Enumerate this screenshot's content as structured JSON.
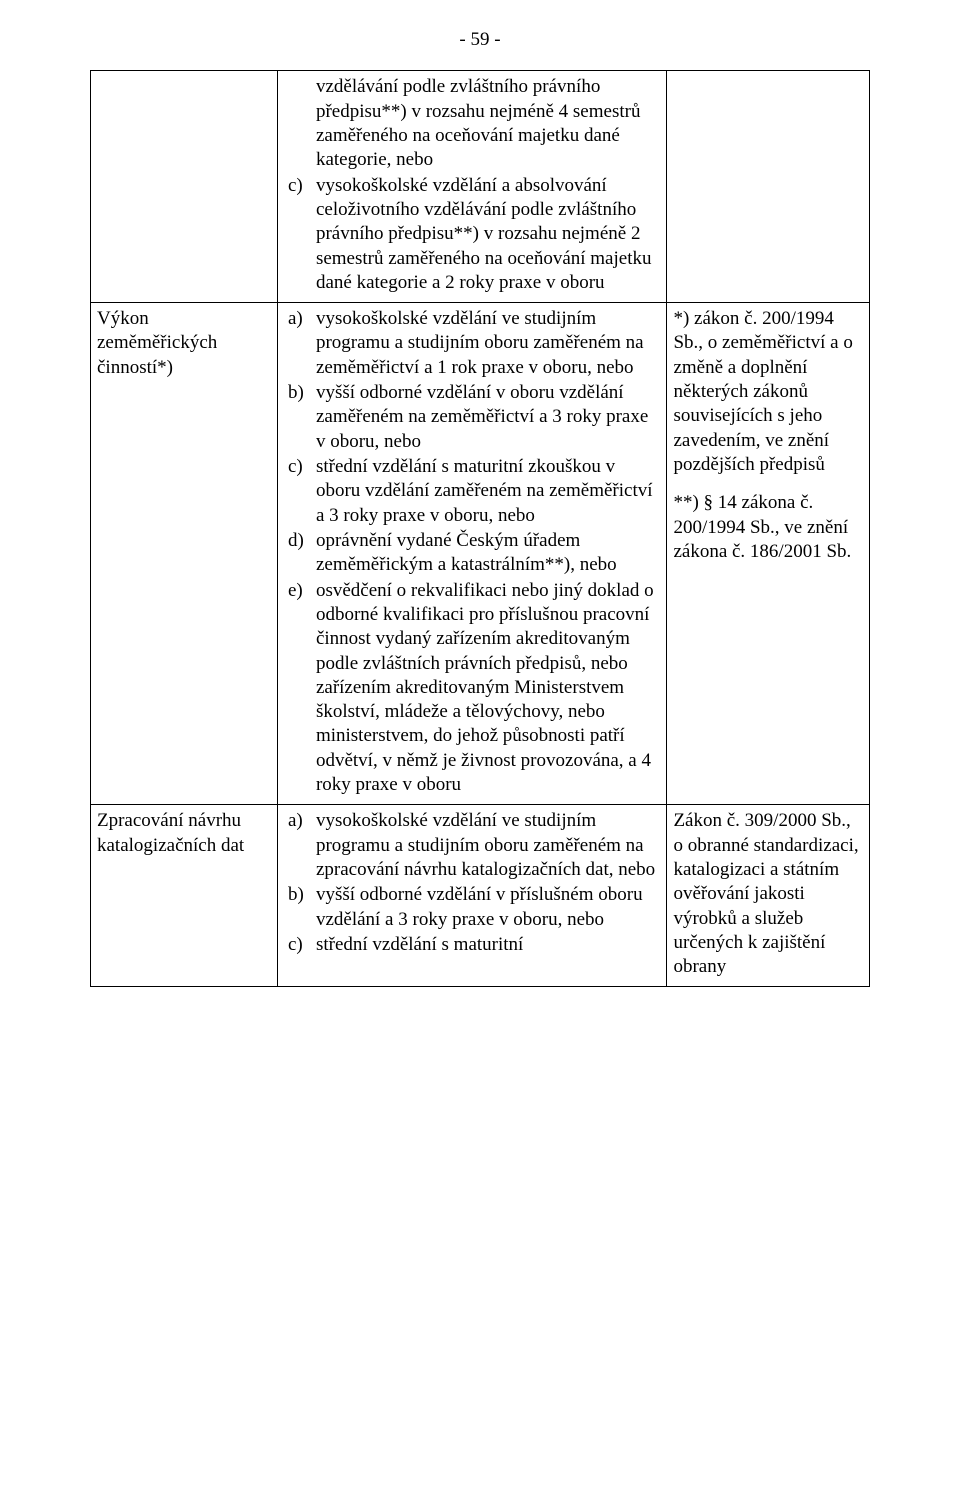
{
  "page_number": "- 59 -",
  "row0": {
    "col1": "",
    "col2_items": [
      {
        "marker": "",
        "text": "vzdělávání podle zvláštního právního předpisu**) v rozsahu nejméně 4 semestrů zaměřeného na oceňování majetku dané kategorie, nebo"
      },
      {
        "marker": "c)",
        "text": "vysokoškolské vzdělání a absolvování celoživotního vzdělávání podle zvláštního právního předpisu**) v rozsahu nejméně 2 semestrů zaměřeného na oceňování majetku dané kategorie a 2 roky praxe v oboru"
      }
    ],
    "col3": ""
  },
  "row1": {
    "col1": "Výkon zeměměřických činností*)",
    "col2_items": [
      {
        "marker": "a)",
        "text": "vysokoškolské vzdělání ve studijním programu a studijním oboru zaměřeném na zeměměřictví a 1 rok praxe v oboru, nebo"
      },
      {
        "marker": "b)",
        "text": "vyšší odborné vzdělání v oboru vzdělání zaměřeném na zeměměřictví a 3 roky praxe v oboru, nebo"
      },
      {
        "marker": "c)",
        "text": "střední vzdělání s maturitní zkouškou v oboru vzdělání zaměřeném na zeměměřictví a 3 roky praxe v oboru, nebo"
      },
      {
        "marker": "d)",
        "text": "oprávnění vydané Českým úřadem zeměměřickým a katastrálním**), nebo"
      },
      {
        "marker": "e)",
        "text": "osvědčení o rekvalifikaci nebo jiný doklad o odborné kvalifikaci pro příslušnou pracovní činnost vydaný zařízením akreditovaným podle zvláštních právních předpisů, nebo zařízením akreditovaným Ministerstvem školství, mládeže a tělovýchovy, nebo ministerstvem, do jehož působnosti patří odvětví, v němž je živnost provozována, a 4 roky praxe v oboru"
      }
    ],
    "col3_p1": "*) zákon č. 200/1994 Sb., o zeměměřictví a o změně a doplnění některých zákonů souvisejících s jeho zavedením, ve znění pozdějších předpisů",
    "col3_p2": "**) § 14 zákona č. 200/1994 Sb., ve znění zákona č. 186/2001 Sb."
  },
  "row2": {
    "col1": "Zpracování návrhu katalogizačních dat",
    "col2_items": [
      {
        "marker": "a)",
        "text": "vysokoškolské vzdělání ve studijním programu a studijním oboru zaměřeném na zpracování návrhu katalogizačních dat, nebo"
      },
      {
        "marker": "b)",
        "text": "vyšší odborné vzdělání v příslušném oboru vzdělání a 3 roky praxe v oboru, nebo"
      },
      {
        "marker": "c)",
        "text": "střední vzdělání s maturitní"
      }
    ],
    "col3_p1": "Zákon č. 309/2000 Sb., o obranné standardizaci, katalogizaci a státním ověřování jakosti výrobků a služeb určených k zajištění obrany"
  }
}
